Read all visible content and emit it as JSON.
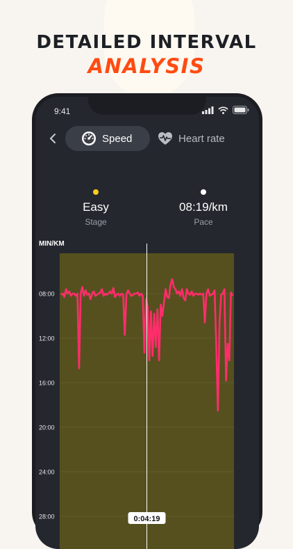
{
  "headline": {
    "line1": "DETAILED INTERVAL",
    "line2": "ANALYSIS"
  },
  "colors": {
    "accent": "#ff4b12",
    "band": "#56501f",
    "pace_line": "#ff2d6b",
    "stage_dot": "#f5cc1e",
    "screen": "#24272e"
  },
  "status_bar": {
    "time": "9:41",
    "icons": [
      "cellular-icon",
      "wifi-icon",
      "battery-icon"
    ]
  },
  "header": {
    "back_icon": "chevron-left-icon",
    "tabs": [
      {
        "label": "Speed",
        "icon": "speedometer-icon",
        "active": true
      },
      {
        "label": "Heart rate",
        "icon": "heart-pulse-icon",
        "active": false
      }
    ]
  },
  "stats": [
    {
      "value": "Easy",
      "label": "Stage"
    },
    {
      "value": "08:19/km",
      "label": "Pace"
    }
  ],
  "chart_data": {
    "type": "line",
    "ylabel": "MIN/KM",
    "y_ticks": [
      "08:00",
      "12:00",
      "16:00",
      "20:00",
      "24:00",
      "28:00"
    ],
    "y_tick_values": [
      8,
      12,
      16,
      20,
      24,
      28
    ],
    "ylim": [
      7,
      28
    ],
    "y_inverted": true,
    "grid": true,
    "cursor_label": "0:04:19",
    "cursor_fraction": 0.5,
    "pace_min_per_km": [
      8.1,
      8.0,
      8.3,
      7.6,
      8.0,
      7.8,
      8.2,
      8.0,
      8.0,
      8.2,
      8.0,
      14.7,
      8.0,
      7.4,
      8.2,
      7.7,
      8.1,
      8.0,
      8.5,
      8.0,
      7.8,
      8.2,
      8.1,
      8.0,
      7.9,
      7.6,
      8.2,
      8.0,
      8.1,
      8.0,
      7.8,
      8.0,
      7.5,
      8.3,
      8.1,
      8.0,
      8.2,
      8.0,
      8.1,
      11.7,
      8.1,
      7.7,
      8.0,
      8.2,
      8.1,
      8.0,
      8.0,
      7.9,
      8.2,
      8.0,
      8.2,
      13.3,
      8.5,
      9.2,
      14.0,
      9.6,
      13.6,
      9.8,
      12.8,
      9.4,
      14.0,
      9.0,
      10.0,
      8.8,
      7.6,
      8.3,
      8.4,
      7.2,
      6.7,
      7.4,
      7.6,
      8.0,
      7.8,
      8.2,
      7.6,
      8.4,
      8.6,
      7.6,
      8.0,
      8.1,
      7.8,
      8.2,
      8.0,
      8.0,
      8.1,
      8.0,
      8.1,
      8.0,
      10.6,
      8.0,
      7.6,
      8.2,
      8.1,
      8.0,
      7.7,
      12.7,
      18.5,
      10.6,
      8.1,
      8.0,
      7.6,
      15.8,
      12.5,
      14.0,
      7.9,
      8.2
    ]
  }
}
